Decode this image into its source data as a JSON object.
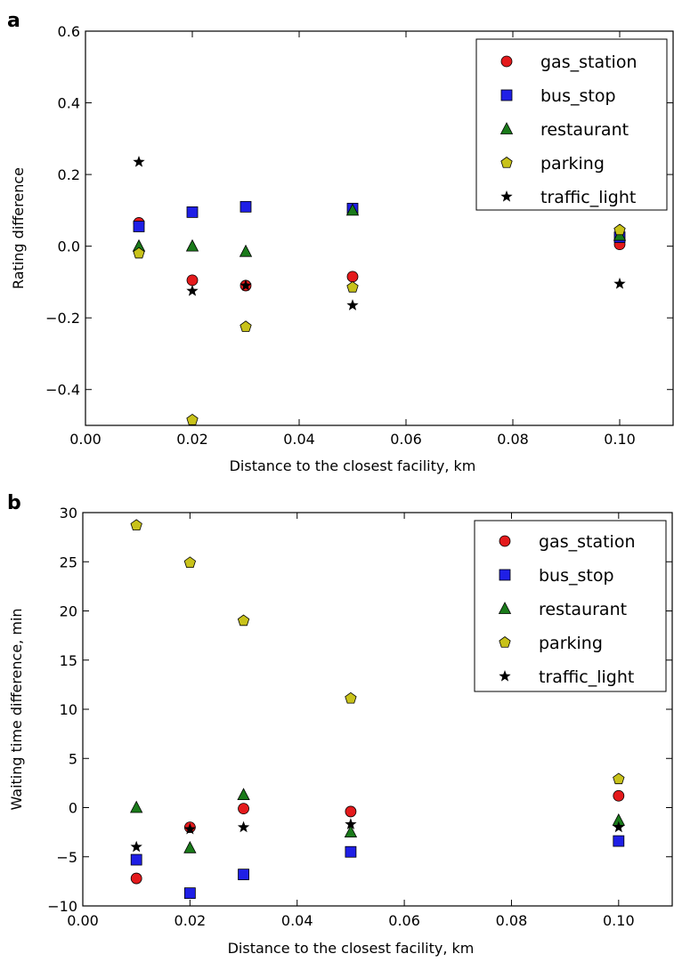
{
  "chart_data": [
    {
      "type": "scatter",
      "panel_label": "a",
      "xlabel": "Distance to the closest facility, km",
      "ylabel": "Rating difference",
      "xlim": [
        0.0,
        0.11
      ],
      "ylim": [
        -0.5,
        0.6
      ],
      "xticks": [
        0.0,
        0.02,
        0.04,
        0.06,
        0.08,
        0.1
      ],
      "xtick_labels": [
        "0.00",
        "0.02",
        "0.04",
        "0.06",
        "0.08",
        "0.10"
      ],
      "yticks": [
        -0.4,
        -0.2,
        0.0,
        0.2,
        0.4,
        0.6
      ],
      "ytick_labels": [
        "−0.4",
        "−0.2",
        "0.0",
        "0.2",
        "0.4",
        "0.6"
      ],
      "grid": false,
      "legend_position": "top-right",
      "x": [
        0.01,
        0.02,
        0.03,
        0.05,
        0.1
      ],
      "series": [
        {
          "name": "gas_station",
          "marker": "circle",
          "color": "#e41a1c",
          "values": [
            0.065,
            -0.095,
            -0.11,
            -0.085,
            0.005
          ]
        },
        {
          "name": "bus_stop",
          "marker": "square",
          "color": "#1f1fe6",
          "values": [
            0.055,
            0.095,
            0.11,
            0.105,
            0.025
          ]
        },
        {
          "name": "restaurant",
          "marker": "triangle",
          "color": "#1a7a1a",
          "values": [
            0.0,
            0.0,
            -0.015,
            0.1,
            0.03
          ]
        },
        {
          "name": "parking",
          "marker": "pentagon",
          "color": "#c8c21a",
          "values": [
            -0.02,
            -0.485,
            -0.225,
            -0.115,
            0.045
          ]
        },
        {
          "name": "traffic_light",
          "marker": "star",
          "color": "#000000",
          "values": [
            0.235,
            -0.125,
            -0.11,
            -0.165,
            -0.105
          ]
        }
      ]
    },
    {
      "type": "scatter",
      "panel_label": "b",
      "xlabel": "Distance to the closest facility, km",
      "ylabel": "Waiting time difference, min",
      "xlim": [
        0.0,
        0.11
      ],
      "ylim": [
        -10,
        30
      ],
      "xticks": [
        0.0,
        0.02,
        0.04,
        0.06,
        0.08,
        0.1
      ],
      "xtick_labels": [
        "0.00",
        "0.02",
        "0.04",
        "0.06",
        "0.08",
        "0.10"
      ],
      "yticks": [
        -10,
        -5,
        0,
        5,
        10,
        15,
        20,
        25,
        30
      ],
      "ytick_labels": [
        "−10",
        "−5",
        "0",
        "5",
        "10",
        "15",
        "20",
        "25",
        "30"
      ],
      "grid": false,
      "legend_position": "top-right",
      "x": [
        0.01,
        0.02,
        0.03,
        0.05,
        0.1
      ],
      "series": [
        {
          "name": "gas_station",
          "marker": "circle",
          "color": "#e41a1c",
          "values": [
            -7.2,
            -2.0,
            -0.1,
            -0.4,
            1.2
          ]
        },
        {
          "name": "bus_stop",
          "marker": "square",
          "color": "#1f1fe6",
          "values": [
            -5.3,
            -8.7,
            -6.8,
            -4.5,
            -3.4
          ]
        },
        {
          "name": "restaurant",
          "marker": "triangle",
          "color": "#1a7a1a",
          "values": [
            0.0,
            -4.1,
            1.3,
            -2.5,
            -1.3
          ]
        },
        {
          "name": "parking",
          "marker": "pentagon",
          "color": "#c8c21a",
          "values": [
            28.7,
            24.9,
            19.0,
            11.1,
            2.9
          ]
        },
        {
          "name": "traffic_light",
          "marker": "star",
          "color": "#000000",
          "values": [
            -4.0,
            -2.2,
            -2.0,
            -1.7,
            -2.0
          ]
        }
      ]
    }
  ]
}
